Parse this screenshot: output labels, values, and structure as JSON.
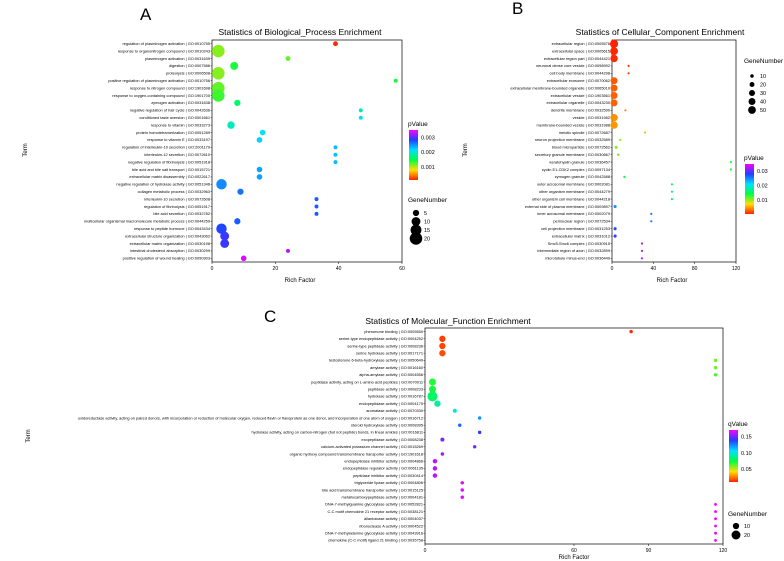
{
  "panels": {
    "A": {
      "letter": "A"
    },
    "B": {
      "letter": "B"
    },
    "C": {
      "letter": "C"
    }
  },
  "chart_data": [
    {
      "panel": "A",
      "type": "scatter",
      "title": "Statistics of Biological_Process Enrichment",
      "xlabel": "Rich Factor",
      "ylabel": "Term",
      "xlim": [
        0,
        60
      ],
      "xticks": [
        0,
        20,
        40,
        60
      ],
      "color_legend": {
        "title": "pValue",
        "ticks": [
          "0.003",
          "0.002",
          "0.001"
        ],
        "max": 0.0035,
        "min": 0.0001
      },
      "size_legend": {
        "title": "GeneNumber",
        "values": [
          5,
          10,
          15,
          20
        ]
      },
      "terms": [
        {
          "label": "regulation of plasminogen activation | GO:0010755",
          "x": 39,
          "p": 0.00012,
          "n": 3
        },
        {
          "label": "response to organonitrogen compound | GO:0010243",
          "x": 2,
          "p": 0.0011,
          "n": 20
        },
        {
          "label": "plasminogen activation | GO:0031639",
          "x": 24,
          "p": 0.0012,
          "n": 3
        },
        {
          "label": "digestion | GO:0007586",
          "x": 7,
          "p": 0.0014,
          "n": 8
        },
        {
          "label": "proteolysis | GO:0006508",
          "x": 2,
          "p": 0.0011,
          "n": 20
        },
        {
          "label": "positive regulation of plasminogen activation | GO:0010756",
          "x": 58,
          "p": 0.0014,
          "n": 2
        },
        {
          "label": "response to nitrogen compound | GO:1901698",
          "x": 2,
          "p": 0.0012,
          "n": 20
        },
        {
          "label": "response to oxygen-containing compound | GO:1901700",
          "x": 2,
          "p": 0.0013,
          "n": 20
        },
        {
          "label": "zymogen activation | GO:0031638",
          "x": 8,
          "p": 0.0016,
          "n": 5
        },
        {
          "label": "negative regulation of hair cycle | GO:0042636",
          "x": 47,
          "p": 0.0019,
          "n": 2
        },
        {
          "label": "conditioned taste aversion | GO:0001661",
          "x": 47,
          "p": 0.0021,
          "n": 2
        },
        {
          "label": "response to vitamin | GO:0033273",
          "x": 6,
          "p": 0.0019,
          "n": 7
        },
        {
          "label": "protein homotetramerization | GO:0051289",
          "x": 16,
          "p": 0.0021,
          "n": 4
        },
        {
          "label": "response to vitamin E | GO:0033197",
          "x": 15,
          "p": 0.0022,
          "n": 4
        },
        {
          "label": "regulation of interleukin-10 secretion | GO:2001179",
          "x": 39,
          "p": 0.0023,
          "n": 2
        },
        {
          "label": "interleukin-12 secretion | GO:0072610",
          "x": 39,
          "p": 0.0023,
          "n": 2
        },
        {
          "label": "negative regulation of fibrinolysis | GO:0051918",
          "x": 39,
          "p": 0.0023,
          "n": 2
        },
        {
          "label": "bile acid and bile salt transport | GO:0015721",
          "x": 15,
          "p": 0.0024,
          "n": 4
        },
        {
          "label": "extracellular matrix disassembly | GO:0022617",
          "x": 15,
          "p": 0.0024,
          "n": 4
        },
        {
          "label": "negative regulation of hydrolase activity | GO:0051346",
          "x": 3,
          "p": 0.0025,
          "n": 14
        },
        {
          "label": "collagen metabolic process | GO:0032963",
          "x": 9,
          "p": 0.0026,
          "n": 5
        },
        {
          "label": "interleukin-10 secretion | GO:0072608",
          "x": 33,
          "p": 0.0027,
          "n": 2
        },
        {
          "label": "regulation of fibrinolysis | GO:0051917",
          "x": 33,
          "p": 0.0027,
          "n": 2
        },
        {
          "label": "bile acid secretion | GO:0032782",
          "x": 33,
          "p": 0.0027,
          "n": 2
        },
        {
          "label": "multicellular organismal macromolecule metabolic process | GO:0044259",
          "x": 8,
          "p": 0.0027,
          "n": 5
        },
        {
          "label": "response to peptide hormone | GO:0043434",
          "x": 3,
          "p": 0.0028,
          "n": 14
        },
        {
          "label": "extracellular structure organization | GO:0043062",
          "x": 4,
          "p": 0.0029,
          "n": 10
        },
        {
          "label": "extracellular matrix organization | GO:0030198",
          "x": 4,
          "p": 0.0029,
          "n": 10
        },
        {
          "label": "intestinal cholesterol absorption | GO:0030299",
          "x": 24,
          "p": 0.0033,
          "n": 2
        },
        {
          "label": "positive regulation of wound healing | GO:0090303",
          "x": 10,
          "p": 0.0034,
          "n": 4
        }
      ]
    },
    {
      "panel": "B",
      "type": "scatter",
      "title": "Statistics of Cellular_Component Enrichment",
      "xlabel": "Rich Factor",
      "ylabel": "Term",
      "xlim": [
        0,
        120
      ],
      "xticks": [
        0,
        40,
        80,
        120
      ],
      "size_legend": {
        "title": "GeneNumber",
        "values": [
          10,
          20,
          30,
          40,
          50
        ]
      },
      "color_legend": {
        "title": "pValue",
        "ticks": [
          "0.03",
          "0.02",
          "0.01"
        ],
        "max": 0.035,
        "min": 0.0005
      },
      "terms": [
        {
          "label": "extracellular region | GO:0005576",
          "x": 2,
          "p": 0.0006,
          "n": 55
        },
        {
          "label": "extracellular space | GO:0005615",
          "x": 2,
          "p": 0.0007,
          "n": 50
        },
        {
          "label": "extracellular region part | GO:0044421",
          "x": 2,
          "p": 0.0008,
          "n": 45
        },
        {
          "label": "neuronal dense core vesicle | GO:0098992",
          "x": 16,
          "p": 0.0015,
          "n": 4
        },
        {
          "label": "cell body membrane | GO:0044298",
          "x": 16,
          "p": 0.0015,
          "n": 4
        },
        {
          "label": "extracellular exosome | GO:0070062",
          "x": 2,
          "p": 0.0025,
          "n": 40
        },
        {
          "label": "extracellular membrane-bounded organelle | GO:0065010",
          "x": 2,
          "p": 0.0027,
          "n": 40
        },
        {
          "label": "extracellular vesicle | GO:1903561",
          "x": 2,
          "p": 0.0028,
          "n": 40
        },
        {
          "label": "extracellular organelle | GO:0043230",
          "x": 2,
          "p": 0.0029,
          "n": 40
        },
        {
          "label": "dendrite membrane | GO:0032590",
          "x": 13,
          "p": 0.004,
          "n": 4
        },
        {
          "label": "vesicle | GO:0031982",
          "x": 2,
          "p": 0.0045,
          "n": 45
        },
        {
          "label": "membrane-bounded vesicle | GO:0031988",
          "x": 2,
          "p": 0.0048,
          "n": 45
        },
        {
          "label": "meiotic spindle | GO:0072687",
          "x": 32,
          "p": 0.006,
          "n": 3
        },
        {
          "label": "neuron projection membrane | GO:0032589",
          "x": 8,
          "p": 0.0095,
          "n": 5
        },
        {
          "label": "blood microparticle | GO:0072562",
          "x": 4,
          "p": 0.0105,
          "n": 8
        },
        {
          "label": "secretory granule membrane | GO:0030667",
          "x": 6,
          "p": 0.0115,
          "n": 5
        },
        {
          "label": "keratohyalin granule | GO:0036457",
          "x": 115,
          "p": 0.0135,
          "n": 2
        },
        {
          "label": "cyclin E1-CDK2 complex | GO:0097134",
          "x": 115,
          "p": 0.0135,
          "n": 2
        },
        {
          "label": "zymogen granule | GO:0042588",
          "x": 12,
          "p": 0.014,
          "n": 3
        },
        {
          "label": "outer acrosomal membrane | GO:0002081",
          "x": 58,
          "p": 0.0155,
          "n": 2
        },
        {
          "label": "other organism membrane | GO:0044279",
          "x": 58,
          "p": 0.0165,
          "n": 2
        },
        {
          "label": "other organism cell membrane | GO:0044218",
          "x": 58,
          "p": 0.0165,
          "n": 2
        },
        {
          "label": "external side of plasma membrane | GO:0009897",
          "x": 3,
          "p": 0.0245,
          "n": 8
        },
        {
          "label": "inner acrosomal membrane | GO:0002079",
          "x": 38,
          "p": 0.0255,
          "n": 2
        },
        {
          "label": "perinuclear region | GO:0072534",
          "x": 38,
          "p": 0.0255,
          "n": 2
        },
        {
          "label": "cell projection membrane | GO:0031253",
          "x": 3,
          "p": 0.0275,
          "n": 8
        },
        {
          "label": "extracellular matrix | GO:0031012",
          "x": 3,
          "p": 0.029,
          "n": 8
        },
        {
          "label": "Smc5-Smc6 complex | GO:0030915",
          "x": 29,
          "p": 0.032,
          "n": 2
        },
        {
          "label": "intermediate region of axon | GO:0032899",
          "x": 29,
          "p": 0.0325,
          "n": 2
        },
        {
          "label": "microtubule minus-end | GO:0036449",
          "x": 29,
          "p": 0.033,
          "n": 2
        }
      ]
    },
    {
      "panel": "C",
      "type": "scatter",
      "title": "Statistics of Molecular_Function Enrichment",
      "xlabel": "Rich Factor",
      "ylabel": "Term",
      "xlim": [
        0,
        120
      ],
      "xticks": [
        0,
        60,
        90,
        120
      ],
      "color_legend": {
        "title": "qValue",
        "ticks": [
          "0.15",
          "0.10",
          "0.05"
        ],
        "max": 0.17,
        "min": 0.01
      },
      "size_legend": {
        "title": "GeneNumber",
        "values": [
          10,
          20
        ]
      },
      "terms": [
        {
          "label": "pheromone binding | GO:0005550",
          "x": 83,
          "p": 0.012,
          "n": 3
        },
        {
          "label": "serine-type endopeptidase activity | GO:0004252",
          "x": 7,
          "p": 0.015,
          "n": 10
        },
        {
          "label": "serine-type peptidase activity | GO:0008236",
          "x": 7,
          "p": 0.016,
          "n": 10
        },
        {
          "label": "serine hydrolase activity | GO:0017171",
          "x": 7,
          "p": 0.017,
          "n": 10
        },
        {
          "label": "testosterone 6-beta-hydroxylase activity | GO:0050649",
          "x": 117,
          "p": 0.06,
          "n": 3
        },
        {
          "label": "amylase activity | GO:0016160",
          "x": 117,
          "p": 0.06,
          "n": 3
        },
        {
          "label": "alpha-amylase activity | GO:0004556",
          "x": 117,
          "p": 0.065,
          "n": 3
        },
        {
          "label": "peptidase activity, acting on L-amino acid peptides | GO:0070011",
          "x": 3,
          "p": 0.07,
          "n": 12
        },
        {
          "label": "peptidase activity | GO:0008233",
          "x": 3,
          "p": 0.072,
          "n": 12
        },
        {
          "label": "hydrolase activity | GO:0016787",
          "x": 3,
          "p": 0.08,
          "n": 25
        },
        {
          "label": "endopeptidase activity | GO:0004175",
          "x": 5,
          "p": 0.09,
          "n": 10
        },
        {
          "label": "aromatase activity | GO:0070330",
          "x": 12,
          "p": 0.1,
          "n": 4
        },
        {
          "label": "oxidoreductase activity, acting on paired donors, with incorporation or reduction of molecular oxygen, reduced flavin or flavoprotein as one donor, and incorporation of one atom of oxygen | GO:0016712",
          "x": 22,
          "p": 0.12,
          "n": 3
        },
        {
          "label": "steroid hydroxylase activity | GO:0008395",
          "x": 14,
          "p": 0.13,
          "n": 3
        },
        {
          "label": "hydrolase activity, acting on carbon-nitrogen (but not peptide) bonds, in linear amides | GO:0016811",
          "x": 22,
          "p": 0.14,
          "n": 3
        },
        {
          "label": "exopeptidase activity | GO:0008238",
          "x": 7,
          "p": 0.15,
          "n": 4
        },
        {
          "label": "calcium-activated potassium channel activity | GO:0015269",
          "x": 20,
          "p": 0.15,
          "n": 3
        },
        {
          "label": "organic hydroxy compound transmembrane transporter activity | GO:1901618",
          "x": 7,
          "p": 0.155,
          "n": 3
        },
        {
          "label": "endopeptidase inhibitor activity | GO:0004866",
          "x": 4,
          "p": 0.16,
          "n": 5
        },
        {
          "label": "endopeptidase regulator activity | GO:0061135",
          "x": 4,
          "p": 0.16,
          "n": 5
        },
        {
          "label": "peptidase inhibitor activity | GO:0030414",
          "x": 4,
          "p": 0.16,
          "n": 5
        },
        {
          "label": "triglyceride lipase activity | GO:0004806",
          "x": 15,
          "p": 0.165,
          "n": 3
        },
        {
          "label": "bile acid transmembrane transporter activity | GO:0015125",
          "x": 15,
          "p": 0.165,
          "n": 3
        },
        {
          "label": "metallocarboxypeptidase activity | GO:0004181",
          "x": 15,
          "p": 0.165,
          "n": 3
        },
        {
          "label": "DNA-7-methylguanine glycosylase activity | GO:0052821",
          "x": 117,
          "p": 0.168,
          "n": 2
        },
        {
          "label": "C-C motif chemokine 21 receptor activity | GO:0038121",
          "x": 117,
          "p": 0.168,
          "n": 2
        },
        {
          "label": "allantoicase activity | GO:0004037",
          "x": 117,
          "p": 0.168,
          "n": 2
        },
        {
          "label": "ribonuclease A activity | GO:0004522",
          "x": 117,
          "p": 0.168,
          "n": 2
        },
        {
          "label": "DNA-7-methyladenine glycosylase activity | GO:0043916",
          "x": 117,
          "p": 0.168,
          "n": 2
        },
        {
          "label": "chemokine (C-C motif) ligand 21 binding | GO:0035758",
          "x": 117,
          "p": 0.168,
          "n": 2
        }
      ]
    }
  ]
}
